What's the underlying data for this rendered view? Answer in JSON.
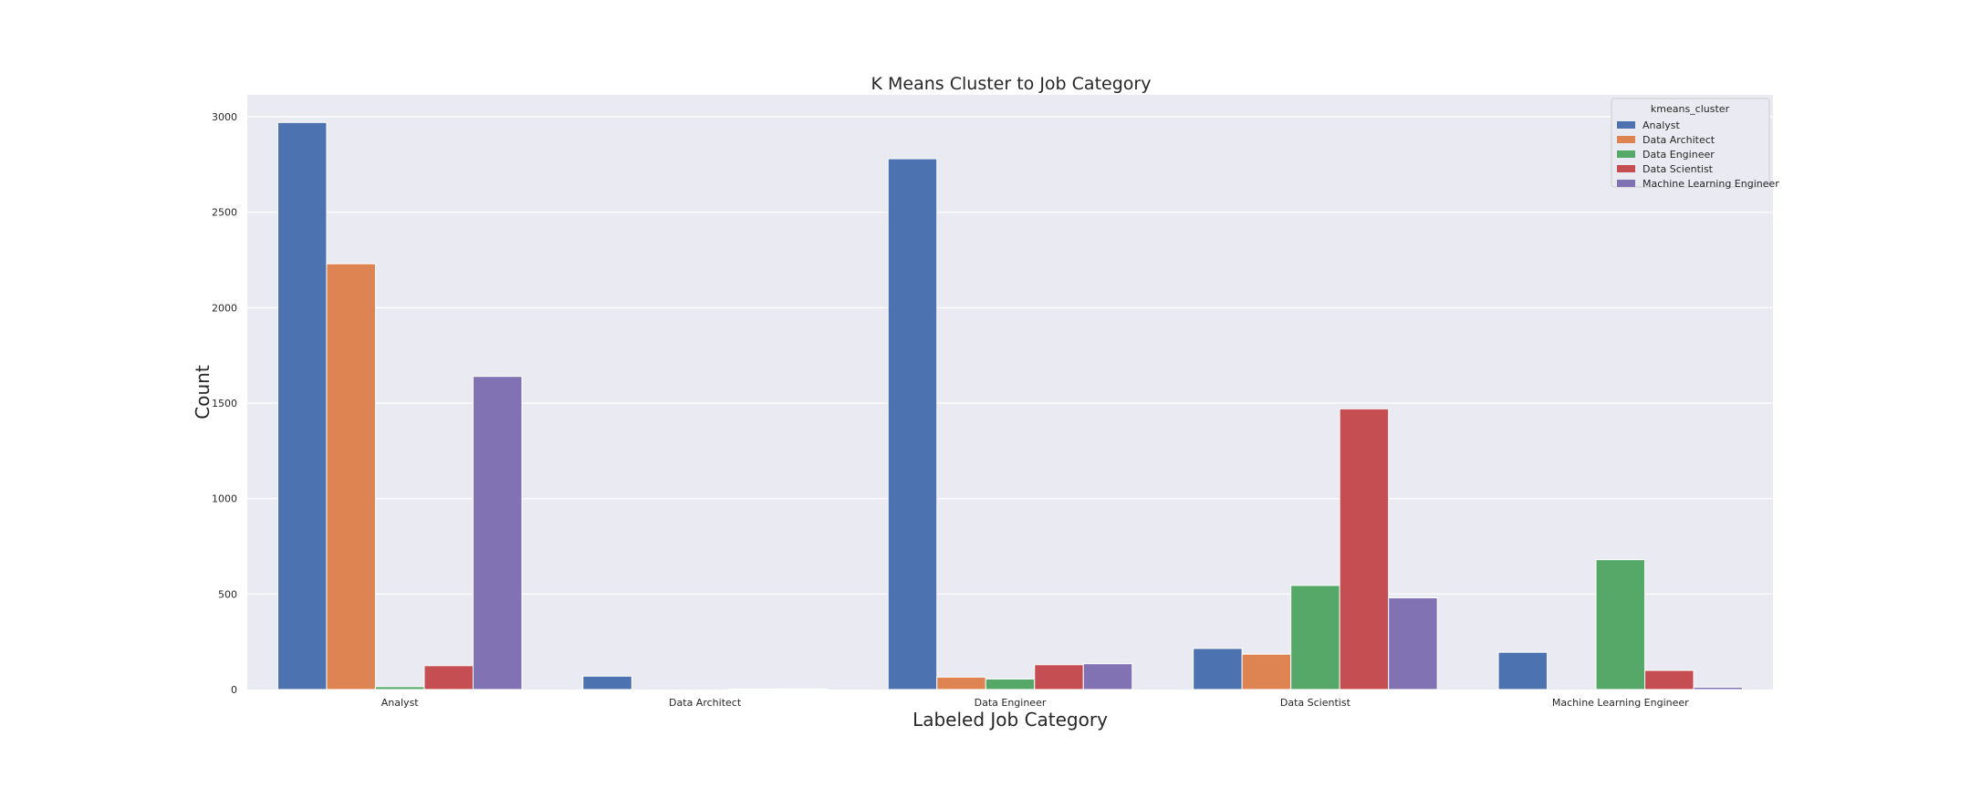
{
  "chart_data": {
    "type": "bar",
    "title": "K Means Cluster to Job Category",
    "xlabel": "Labeled Job Category",
    "ylabel": "Count",
    "categories": [
      "Analyst",
      "Data Architect",
      "Data Engineer",
      "Data Scientist",
      "Machine Learning Engineer"
    ],
    "ylim": [
      0,
      3100
    ],
    "yticks": [
      "0",
      "500",
      "1000",
      "1500",
      "2000",
      "2500",
      "3000"
    ],
    "grid": true,
    "legend_title": "kmeans_cluster",
    "legend_position": "top-right",
    "series": [
      {
        "name": "Analyst",
        "color": "#4c72b0",
        "values": [
          2970,
          70,
          2780,
          215,
          195
        ]
      },
      {
        "name": "Data Architect",
        "color": "#dd8452",
        "values": [
          2230,
          0,
          65,
          185,
          0
        ]
      },
      {
        "name": "Data Engineer",
        "color": "#55a868",
        "values": [
          15,
          0,
          55,
          545,
          680
        ]
      },
      {
        "name": "Data Scientist",
        "color": "#c44e52",
        "values": [
          125,
          2,
          130,
          1470,
          100
        ]
      },
      {
        "name": "Machine Learning Engineer",
        "color": "#8172b3",
        "values": [
          1640,
          3,
          135,
          480,
          12
        ]
      }
    ]
  }
}
